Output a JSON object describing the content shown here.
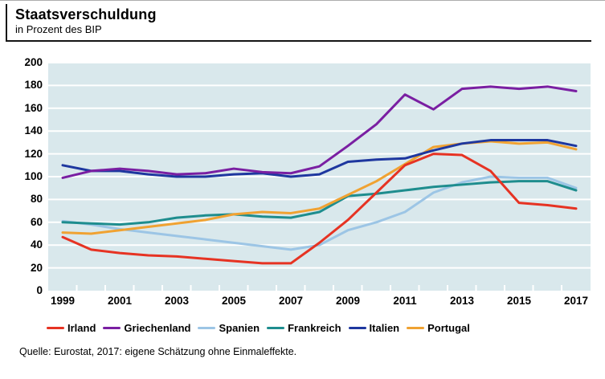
{
  "header": {
    "title": "Staatsverschuldung",
    "subtitle": "in Prozent des BIP"
  },
  "source_note": "Quelle: Eurostat, 2017: eigene Schätzung ohne Einmaleffekte.",
  "colors": {
    "plot_background": "#d9e8ec",
    "gridline": "#ffffff",
    "text": "#000000"
  },
  "chart_data": {
    "type": "line",
    "title": "Staatsverschuldung",
    "subtitle": "in Prozent des BIP",
    "xlabel": "",
    "ylabel": "in Prozent des BIP",
    "ylim": [
      0,
      200
    ],
    "y_tick_step": 20,
    "grid": true,
    "legend_position": "bottom",
    "x": [
      1999,
      2000,
      2001,
      2002,
      2003,
      2004,
      2005,
      2006,
      2007,
      2008,
      2009,
      2010,
      2011,
      2012,
      2013,
      2014,
      2015,
      2016,
      2017
    ],
    "x_tick_labels": [
      "1999",
      "2001",
      "2003",
      "2005",
      "2007",
      "2009",
      "2011",
      "2013",
      "2015",
      "2017"
    ],
    "series": [
      {
        "name": "Irland",
        "color": "#e63323",
        "values": [
          47,
          36,
          33,
          31,
          30,
          28,
          26,
          24,
          24,
          42,
          62,
          86,
          110,
          120,
          119,
          105,
          77,
          75,
          72
        ]
      },
      {
        "name": "Griechenland",
        "color": "#7a1fa2",
        "values": [
          99,
          105,
          107,
          105,
          102,
          103,
          107,
          104,
          103,
          109,
          127,
          146,
          172,
          159,
          177,
          179,
          177,
          179,
          175
        ]
      },
      {
        "name": "Spanien",
        "color": "#9cc5e5",
        "values": [
          61,
          58,
          54,
          51,
          48,
          45,
          42,
          39,
          36,
          40,
          53,
          60,
          69,
          86,
          95,
          100,
          99,
          99,
          90
        ]
      },
      {
        "name": "Frankreich",
        "color": "#1e8d8e",
        "values": [
          60,
          59,
          58,
          60,
          64,
          66,
          67,
          65,
          64,
          69,
          83,
          85,
          88,
          91,
          93,
          95,
          96,
          96,
          88
        ]
      },
      {
        "name": "Italien",
        "color": "#1e379f",
        "values": [
          110,
          105,
          105,
          102,
          100,
          100,
          102,
          103,
          100,
          102,
          113,
          115,
          116,
          123,
          129,
          132,
          132,
          132,
          127
        ]
      },
      {
        "name": "Portugal",
        "color": "#f0a232",
        "values": [
          51,
          50,
          53,
          56,
          59,
          62,
          67,
          69,
          68,
          72,
          84,
          96,
          111,
          126,
          129,
          131,
          129,
          130,
          124
        ]
      }
    ]
  }
}
